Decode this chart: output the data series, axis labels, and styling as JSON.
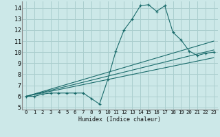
{
  "title": "",
  "xlabel": "Humidex (Indice chaleur)",
  "ylabel": "",
  "background_color": "#cce8e8",
  "grid_color": "#aacece",
  "line_color": "#1a6b6b",
  "xlim": [
    -0.5,
    23.5
  ],
  "ylim": [
    4.8,
    14.6
  ],
  "xticks": [
    0,
    1,
    2,
    3,
    4,
    5,
    6,
    7,
    8,
    9,
    10,
    11,
    12,
    13,
    14,
    15,
    16,
    17,
    18,
    19,
    20,
    21,
    22,
    23
  ],
  "yticks": [
    5,
    6,
    7,
    8,
    9,
    10,
    11,
    12,
    13,
    14
  ],
  "line1_x": [
    0,
    1,
    2,
    3,
    4,
    5,
    6,
    7,
    8,
    9,
    10,
    11,
    12,
    13,
    14,
    15,
    16,
    17,
    18,
    19,
    20,
    21,
    22,
    23
  ],
  "line1_y": [
    6.0,
    6.0,
    6.2,
    6.3,
    6.3,
    6.3,
    6.3,
    6.3,
    5.8,
    5.3,
    7.5,
    10.1,
    12.0,
    13.0,
    14.2,
    14.3,
    13.7,
    14.2,
    11.8,
    11.1,
    10.1,
    9.7,
    9.9,
    10.0
  ],
  "line2_x": [
    0,
    23
  ],
  "line2_y": [
    6.0,
    9.5
  ],
  "line3_x": [
    0,
    23
  ],
  "line3_y": [
    6.0,
    10.2
  ],
  "line4_x": [
    0,
    23
  ],
  "line4_y": [
    6.0,
    11.0
  ]
}
